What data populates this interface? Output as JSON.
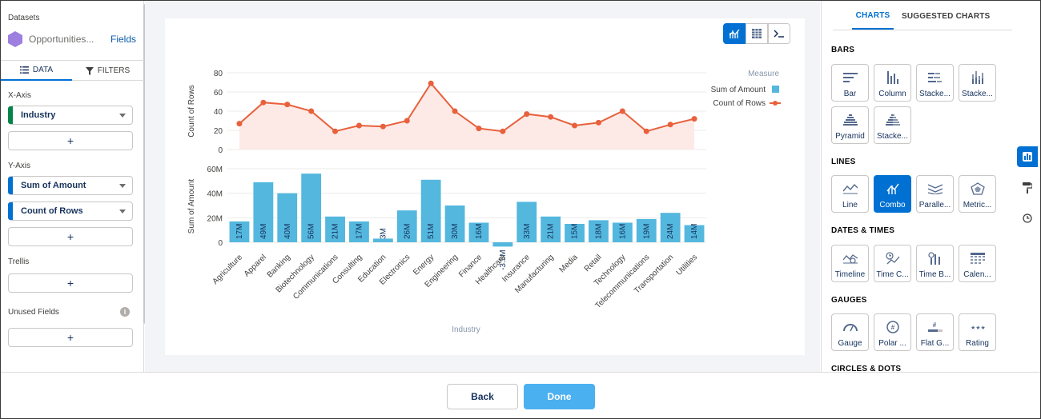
{
  "left_panel": {
    "datasets_label": "Datasets",
    "dataset_name": "Opportunities...",
    "fields_link": "Fields",
    "tabs": [
      {
        "label": "DATA"
      },
      {
        "label": "FILTERS"
      }
    ],
    "x_axis_label": "X-Axis",
    "x_axis_field": "Industry",
    "y_axis_label": "Y-Axis",
    "y_axis_fields": [
      "Sum of Amount",
      "Count of Rows"
    ],
    "trellis_label": "Trellis",
    "unused_fields_label": "Unused Fields",
    "add_symbol": "+",
    "info_symbol": "i",
    "colors": {
      "dimension": "#04844b",
      "measure": "#0070d2"
    }
  },
  "view_toggle": [
    {
      "icon": "combo-chart-icon"
    },
    {
      "icon": "table-icon"
    },
    {
      "icon": "query-icon"
    }
  ],
  "chart_data": {
    "type": "combo",
    "categories": [
      "Agriculture",
      "Apparel",
      "Banking",
      "Biotechnology",
      "Communications",
      "Consulting",
      "Education",
      "Electronics",
      "Energy",
      "Engineering",
      "Finance",
      "Healthcare",
      "Insurance",
      "Manufacturing",
      "Media",
      "Retail",
      "Technology",
      "Telecommunications",
      "Transportation",
      "Utilities"
    ],
    "xlabel": "Industry",
    "legend_title": "Measure",
    "legend_position": "top-right",
    "line": {
      "name": "Count of Rows",
      "ylabel": "Count of Rows",
      "ylim": [
        0,
        80
      ],
      "yticks": [
        "0",
        "20",
        "40",
        "60",
        "80"
      ],
      "values": [
        27,
        49,
        47,
        40,
        19,
        25,
        24,
        30,
        69,
        40,
        22,
        19,
        37,
        34,
        25,
        28,
        40,
        19,
        26,
        32
      ],
      "color": "#e8603c",
      "fill": "#fdeae6"
    },
    "bars": {
      "name": "Sum of Amount",
      "ylabel": "Sum of Amount",
      "ylim": [
        -5,
        60
      ],
      "yticks": [
        {
          "v": 0,
          "t": "0"
        },
        {
          "v": 20,
          "t": "20M"
        },
        {
          "v": 40,
          "t": "40M"
        },
        {
          "v": 60,
          "t": "60M"
        }
      ],
      "values": [
        17,
        49,
        40,
        56,
        21,
        17,
        3,
        26,
        51,
        30,
        16,
        -3.5,
        33,
        21,
        15,
        18,
        16,
        19,
        24,
        14
      ],
      "labels": [
        "17M",
        "49M",
        "40M",
        "56M",
        "21M",
        "17M",
        "3M",
        "26M",
        "51M",
        "30M",
        "16M",
        "-3.5M",
        "33M",
        "21M",
        "15M",
        "18M",
        "16M",
        "19M",
        "24M",
        "14M"
      ],
      "color": "#54b7de"
    }
  },
  "right_panel": {
    "tabs": [
      {
        "label": "CHARTS"
      },
      {
        "label": "SUGGESTED CHARTS"
      }
    ],
    "sections": {
      "bars": {
        "title": "BARS",
        "tiles": [
          {
            "label": "Bar"
          },
          {
            "label": "Column"
          },
          {
            "label": "Stacke..."
          },
          {
            "label": "Stacke..."
          },
          {
            "label": "Pyramid"
          },
          {
            "label": "Stacke..."
          }
        ]
      },
      "lines": {
        "title": "LINES",
        "tiles": [
          {
            "label": "Line"
          },
          {
            "label": "Combo"
          },
          {
            "label": "Paralle..."
          },
          {
            "label": "Metric..."
          }
        ]
      },
      "dates": {
        "title": "DATES & TIMES",
        "tiles": [
          {
            "label": "Timeline"
          },
          {
            "label": "Time C..."
          },
          {
            "label": "Time B..."
          },
          {
            "label": "Calen..."
          }
        ]
      },
      "gauges": {
        "title": "GAUGES",
        "tiles": [
          {
            "label": "Gauge"
          },
          {
            "label": "Polar ..."
          },
          {
            "label": "Flat G..."
          },
          {
            "label": "Rating"
          }
        ]
      },
      "circles": {
        "title": "CIRCLES & DOTS"
      }
    },
    "selected_chart": "Combo",
    "rail_icons": [
      "chart-icon",
      "paint-roller-icon",
      "clock-icon"
    ]
  },
  "footer": {
    "back_label": "Back",
    "done_label": "Done"
  }
}
